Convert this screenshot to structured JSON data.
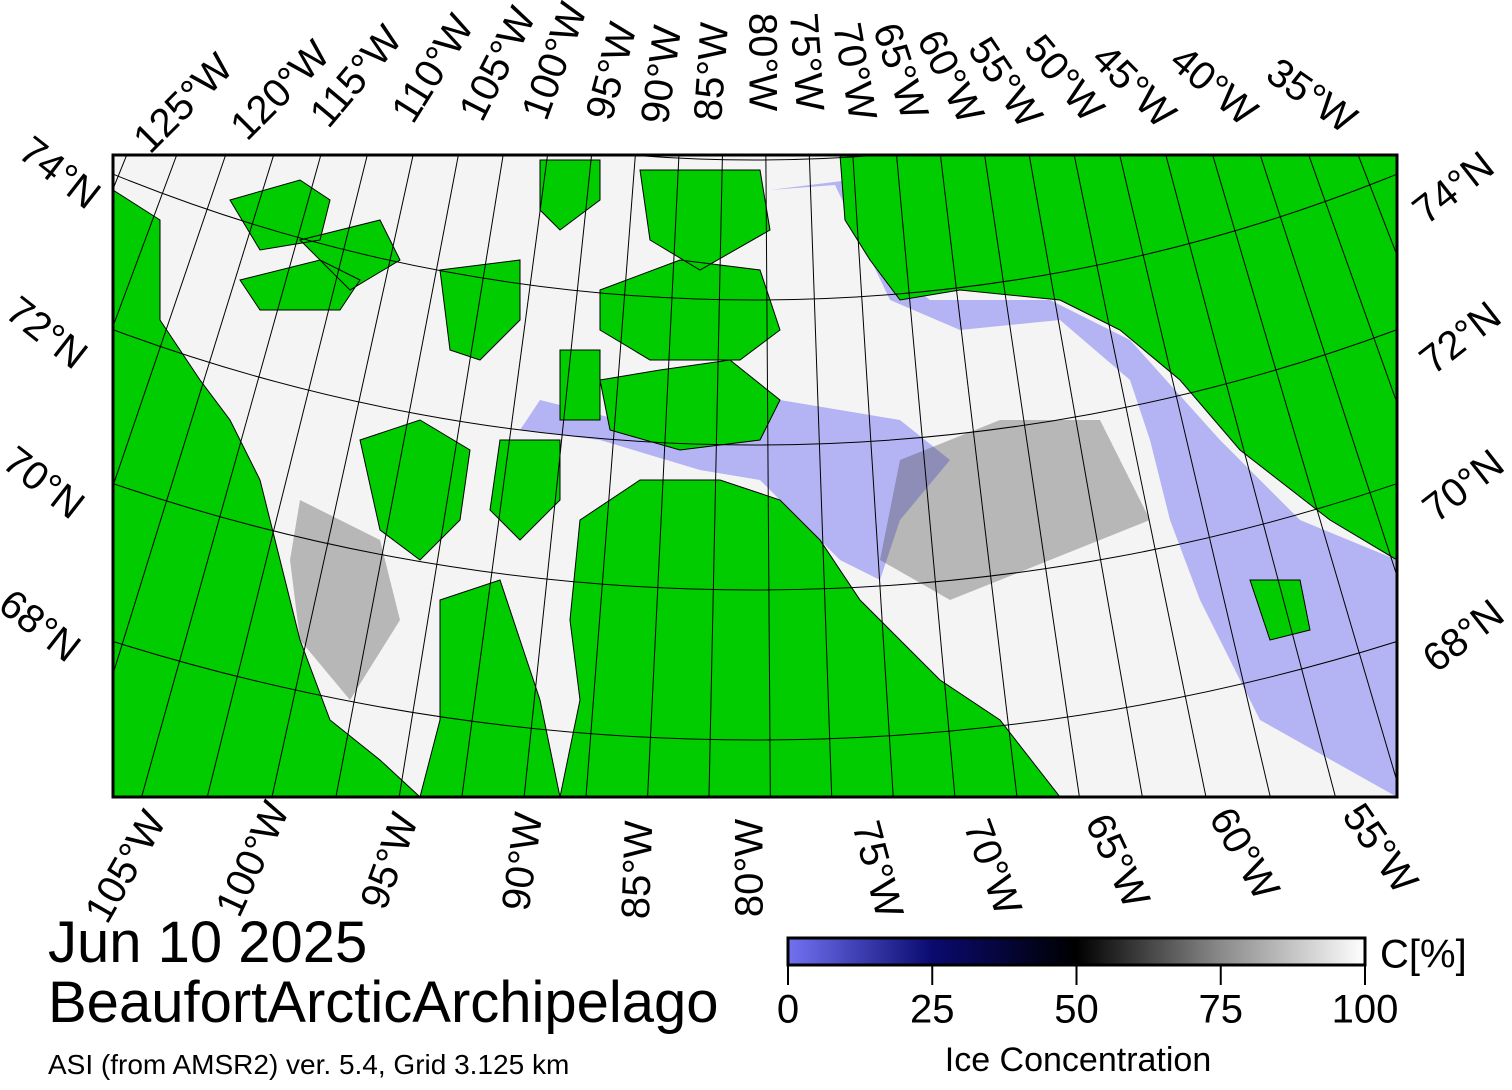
{
  "title": {
    "date": "Jun 10 2025",
    "region": "BeaufortArcticArchipelago",
    "source": "ASI (from AMSR2) ver. 5.4,  Grid 3.125 km"
  },
  "map": {
    "top_lon_labels": [
      "125°W",
      "120°W",
      "115°W",
      "110°W",
      "105°W",
      "100°W",
      "95°W",
      "90°W",
      "85°W",
      "80°W",
      "75°W",
      "70°W",
      "65°W",
      "60°W",
      "55°W",
      "50°W",
      "45°W",
      "40°W",
      "35°W"
    ],
    "bottom_lon_labels": [
      "105°W",
      "100°W",
      "95°W",
      "90°W",
      "85°W",
      "80°W",
      "75°W",
      "70°W",
      "65°W",
      "60°W",
      "55°W"
    ],
    "left_lat_labels": [
      "74°N",
      "72°N",
      "70°N",
      "68°N"
    ],
    "right_lat_labels": [
      "74°N",
      "72°N",
      "70°N",
      "68°N"
    ],
    "land_color": "#00cc00",
    "water_color": "#b4b4f4"
  },
  "colorbar": {
    "lim": [
      0,
      100
    ],
    "ticks": [
      0,
      25,
      50,
      75,
      100
    ],
    "colors": [
      "#7272f2",
      "#0a0a70",
      "#000000",
      "#8a8a8a",
      "#ffffff"
    ],
    "unit_label": "C[%]",
    "label": "Ice Concentration"
  }
}
